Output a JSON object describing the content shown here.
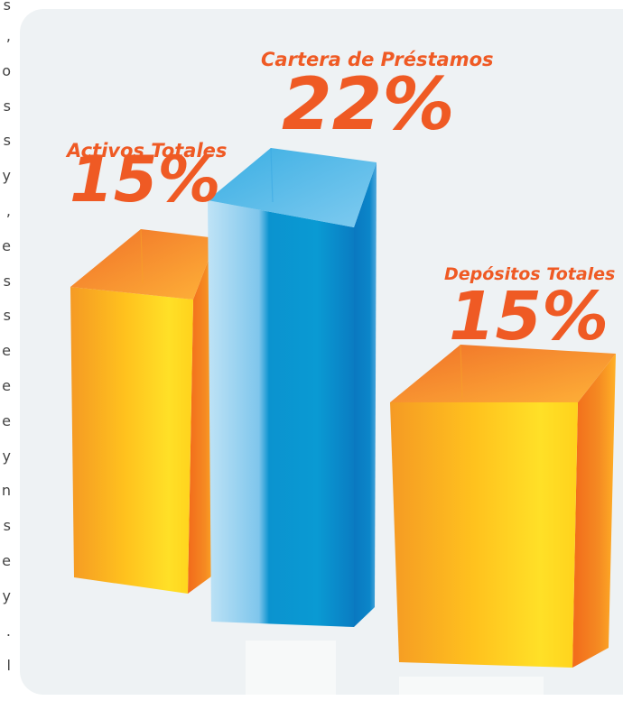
{
  "text_fragments": [
    ",",
    "o",
    "s",
    "s",
    "y",
    ",",
    "e",
    "s",
    "s",
    "e",
    "e",
    "e",
    "y",
    "n",
    "s",
    "e",
    "y",
    ".",
    "l"
  ],
  "text_fragment_first": "s",
  "colors": {
    "orange_light": "#ffd23a",
    "orange_dark": "#f06a1e",
    "blue_light": "#8fd0f2",
    "blue_dark": "#0a79c2",
    "label": "#ef5a24",
    "panel": "#eef2f4"
  },
  "chart_data": {
    "type": "bar",
    "categories": [
      "Activos Totales",
      "Cartera de Préstamos",
      "Depósitos Totales"
    ],
    "values": [
      15,
      22,
      15
    ],
    "value_labels": [
      "15%",
      "22%",
      "15%"
    ],
    "unit": "%",
    "grid": false,
    "legend": "none",
    "style": "3d-columns"
  }
}
